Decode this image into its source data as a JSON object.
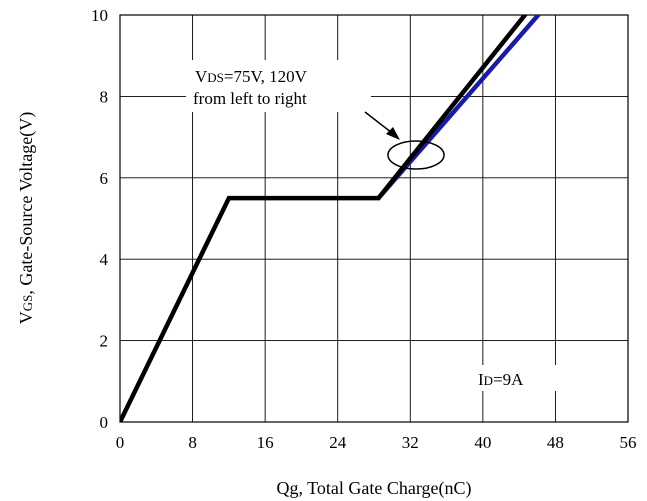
{
  "chart_data": {
    "type": "line",
    "xlabel": "Qg, Total Gate Charge(nC)",
    "ylabel": "VGS, Gate-Source Voltage(V)",
    "xlim": [
      0,
      56
    ],
    "ylim": [
      0,
      10
    ],
    "x_ticks": [
      "0",
      "8",
      "16",
      "24",
      "32",
      "40",
      "48",
      "56"
    ],
    "y_ticks": [
      "0",
      "2",
      "4",
      "6",
      "8",
      "10"
    ],
    "grid": true,
    "series": [
      {
        "name": "VDS=75V",
        "color": "#000000",
        "points": [
          [
            0,
            0
          ],
          [
            12,
            5.5
          ],
          [
            28.5,
            5.5
          ],
          [
            45,
            10.1
          ]
        ]
      },
      {
        "name": "VDS=120V",
        "color": "#1a1aa8",
        "points": [
          [
            28.5,
            5.5
          ],
          [
            46.5,
            10.1
          ]
        ]
      }
    ],
    "annotations": {
      "vds_line1_prefix": "V",
      "vds_line1_sub": "DS",
      "vds_line1_rest": "=75V, 120V",
      "vds_line2": "from left to right",
      "id_prefix": "I",
      "id_sub": "D",
      "id_rest": "=9A"
    },
    "ylabel_prefix": "V",
    "ylabel_sub": "GS",
    "ylabel_rest": ", Gate-Source Voltage(V)"
  }
}
